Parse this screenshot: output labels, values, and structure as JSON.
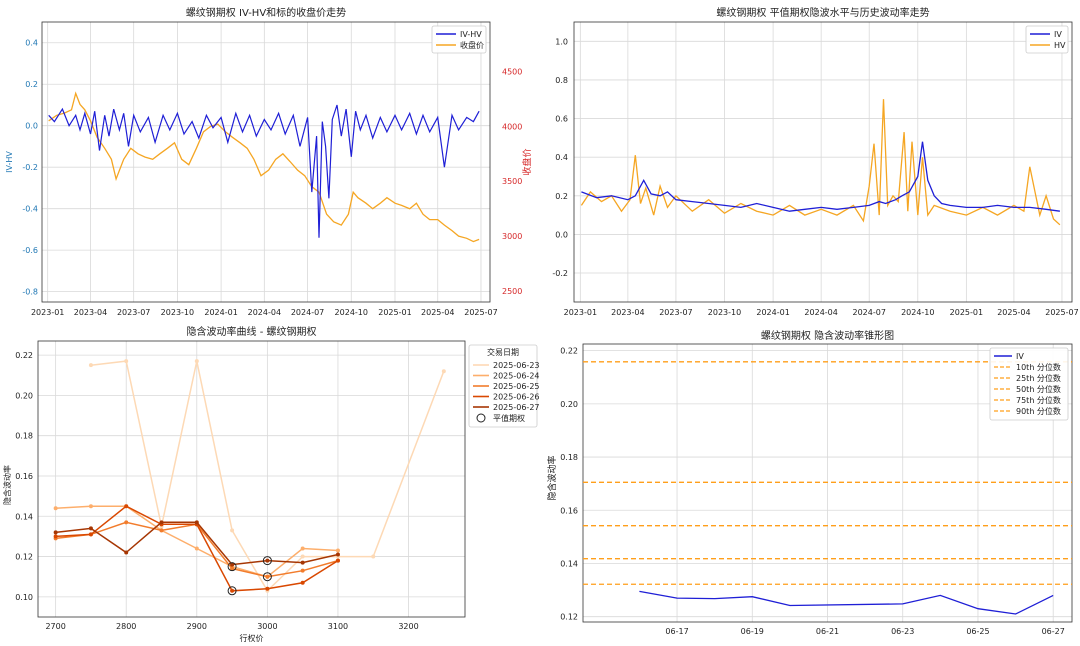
{
  "colors": {
    "iv": "#1f1fd6",
    "hv": "#f5a623",
    "close_axis": "#d62728",
    "iv_hv_axis": "#1f77b4",
    "grid": "#d9d9d9",
    "quantile_line": "#ff9f1a",
    "dates": [
      "#fdd9b5",
      "#fdae6b",
      "#f27c2c",
      "#d94801",
      "#a63603"
    ]
  },
  "chart_data": [
    {
      "type": "line",
      "title": "螺纹钢期权 IV-HV和标的收盘价走势",
      "ylabel": "IV-HV",
      "y2label": "收盘价",
      "ylim": [
        -0.85,
        0.5
      ],
      "y2lim": [
        2400,
        4950
      ],
      "x_range": [
        "2022-12-20",
        "2025-07-20"
      ],
      "yticks": [
        "-0.8",
        "-0.6",
        "-0.4",
        "-0.2",
        "0.0",
        "0.2",
        "0.4"
      ],
      "y2ticks": [
        "2500",
        "3000",
        "3500",
        "4000",
        "4500"
      ],
      "xticks": [
        "2023-01",
        "2023-04",
        "2023-07",
        "2023-10",
        "2024-01",
        "2024-04",
        "2024-07",
        "2024-10",
        "2025-01",
        "2025-04",
        "2025-07"
      ],
      "grid": true,
      "legend_position": "top-right",
      "series": [
        {
          "name": "IV-HV",
          "axis": "left",
          "x": [
            "2023-01-03",
            "2023-01-15",
            "2023-02-01",
            "2023-02-15",
            "2023-03-01",
            "2023-03-10",
            "2023-03-20",
            "2023-04-01",
            "2023-04-10",
            "2023-04-20",
            "2023-05-01",
            "2023-05-10",
            "2023-05-20",
            "2023-06-01",
            "2023-06-10",
            "2023-06-20",
            "2023-07-01",
            "2023-07-15",
            "2023-08-01",
            "2023-08-15",
            "2023-09-01",
            "2023-09-15",
            "2023-10-01",
            "2023-10-15",
            "2023-11-01",
            "2023-11-15",
            "2023-12-01",
            "2023-12-15",
            "2024-01-01",
            "2024-01-15",
            "2024-02-01",
            "2024-02-15",
            "2024-03-01",
            "2024-03-15",
            "2024-04-01",
            "2024-04-15",
            "2024-05-01",
            "2024-05-15",
            "2024-06-01",
            "2024-06-15",
            "2024-07-01",
            "2024-07-10",
            "2024-07-20",
            "2024-07-25",
            "2024-08-01",
            "2024-08-08",
            "2024-08-15",
            "2024-08-22",
            "2024-09-01",
            "2024-09-10",
            "2024-09-20",
            "2024-10-01",
            "2024-10-10",
            "2024-10-20",
            "2024-11-01",
            "2024-11-15",
            "2024-12-01",
            "2024-12-15",
            "2025-01-01",
            "2025-01-15",
            "2025-02-01",
            "2025-02-15",
            "2025-03-01",
            "2025-03-15",
            "2025-04-01",
            "2025-04-15",
            "2025-05-01",
            "2025-05-15",
            "2025-06-01",
            "2025-06-15",
            "2025-06-27"
          ],
          "values": [
            0.05,
            0.02,
            0.08,
            0.0,
            0.05,
            -0.02,
            0.06,
            -0.04,
            0.07,
            -0.12,
            0.05,
            -0.05,
            0.08,
            -0.02,
            0.06,
            -0.1,
            0.05,
            -0.03,
            0.04,
            -0.08,
            0.05,
            -0.02,
            0.06,
            -0.04,
            0.02,
            -0.06,
            0.05,
            -0.01,
            0.04,
            -0.08,
            0.06,
            -0.03,
            0.05,
            -0.05,
            0.03,
            -0.02,
            0.06,
            -0.04,
            0.05,
            -0.1,
            0.04,
            -0.32,
            -0.05,
            -0.54,
            0.02,
            -0.1,
            -0.35,
            0.03,
            0.1,
            -0.05,
            0.08,
            -0.15,
            0.07,
            -0.02,
            0.05,
            -0.06,
            0.04,
            -0.03,
            0.05,
            -0.02,
            0.06,
            -0.04,
            0.05,
            -0.03,
            0.04,
            -0.2,
            0.05,
            -0.02,
            0.04,
            0.02,
            0.07
          ]
        },
        {
          "name": "收盘价",
          "axis": "right",
          "x": [
            "2023-01-03",
            "2023-01-20",
            "2023-02-05",
            "2023-02-20",
            "2023-03-01",
            "2023-03-10",
            "2023-03-20",
            "2023-04-01",
            "2023-04-15",
            "2023-05-01",
            "2023-05-15",
            "2023-05-25",
            "2023-06-10",
            "2023-06-25",
            "2023-07-10",
            "2023-07-25",
            "2023-08-10",
            "2023-08-25",
            "2023-09-10",
            "2023-09-25",
            "2023-10-10",
            "2023-10-25",
            "2023-11-10",
            "2023-11-25",
            "2023-12-10",
            "2023-12-25",
            "2024-01-10",
            "2024-01-25",
            "2024-02-10",
            "2024-02-25",
            "2024-03-10",
            "2024-03-25",
            "2024-04-10",
            "2024-04-25",
            "2024-05-10",
            "2024-05-25",
            "2024-06-10",
            "2024-06-25",
            "2024-07-10",
            "2024-07-25",
            "2024-08-10",
            "2024-08-25",
            "2024-09-10",
            "2024-09-25",
            "2024-10-05",
            "2024-10-15",
            "2024-11-01",
            "2024-11-15",
            "2024-12-01",
            "2024-12-15",
            "2025-01-01",
            "2025-01-15",
            "2025-02-01",
            "2025-02-15",
            "2025-03-01",
            "2025-03-15",
            "2025-04-01",
            "2025-04-15",
            "2025-05-01",
            "2025-05-15",
            "2025-06-01",
            "2025-06-15",
            "2025-06-27"
          ],
          "values": [
            4050,
            4100,
            4120,
            4150,
            4300,
            4200,
            4150,
            4050,
            3900,
            3800,
            3700,
            3520,
            3700,
            3800,
            3750,
            3720,
            3700,
            3750,
            3800,
            3850,
            3700,
            3650,
            3800,
            3950,
            4000,
            4020,
            3950,
            3900,
            3850,
            3800,
            3700,
            3550,
            3600,
            3700,
            3750,
            3680,
            3600,
            3550,
            3450,
            3400,
            3200,
            3130,
            3100,
            3200,
            3400,
            3350,
            3300,
            3250,
            3300,
            3350,
            3300,
            3280,
            3250,
            3300,
            3200,
            3150,
            3150,
            3100,
            3050,
            3000,
            2980,
            2950,
            2970
          ]
        }
      ]
    },
    {
      "type": "line",
      "title": "螺纹钢期权 平值期权隐波水平与历史波动率走势",
      "ylim": [
        -0.35,
        1.1
      ],
      "x_range": [
        "2022-12-20",
        "2025-07-20"
      ],
      "yticks": [
        "-0.2",
        "0.0",
        "0.2",
        "0.4",
        "0.6",
        "0.8",
        "1.0"
      ],
      "xticks": [
        "2023-01",
        "2023-04",
        "2023-07",
        "2023-10",
        "2024-01",
        "2024-04",
        "2024-07",
        "2024-10",
        "2025-01",
        "2025-04",
        "2025-07"
      ],
      "grid": true,
      "legend_position": "top-right",
      "series": [
        {
          "name": "IV",
          "x": [
            "2023-01-03",
            "2023-02-01",
            "2023-03-01",
            "2023-04-01",
            "2023-04-15",
            "2023-05-01",
            "2023-05-15",
            "2023-06-01",
            "2023-06-15",
            "2023-07-01",
            "2023-08-01",
            "2023-09-01",
            "2023-10-01",
            "2023-11-01",
            "2023-12-01",
            "2024-01-01",
            "2024-02-01",
            "2024-03-01",
            "2024-04-01",
            "2024-05-01",
            "2024-06-01",
            "2024-07-01",
            "2024-07-20",
            "2024-08-01",
            "2024-08-20",
            "2024-09-01",
            "2024-09-15",
            "2024-10-01",
            "2024-10-10",
            "2024-10-20",
            "2024-11-01",
            "2024-11-15",
            "2024-12-01",
            "2025-01-01",
            "2025-02-01",
            "2025-03-01",
            "2025-04-01",
            "2025-05-01",
            "2025-06-01",
            "2025-06-27"
          ],
          "values": [
            0.22,
            0.19,
            0.2,
            0.18,
            0.2,
            0.28,
            0.21,
            0.2,
            0.22,
            0.18,
            0.17,
            0.16,
            0.15,
            0.14,
            0.16,
            0.14,
            0.12,
            0.13,
            0.14,
            0.13,
            0.14,
            0.15,
            0.17,
            0.16,
            0.18,
            0.2,
            0.22,
            0.3,
            0.48,
            0.28,
            0.2,
            0.16,
            0.15,
            0.14,
            0.14,
            0.15,
            0.14,
            0.14,
            0.13,
            0.12
          ]
        },
        {
          "name": "HV",
          "x": [
            "2023-01-03",
            "2023-01-20",
            "2023-02-10",
            "2023-03-01",
            "2023-03-20",
            "2023-04-05",
            "2023-04-15",
            "2023-04-25",
            "2023-05-05",
            "2023-05-20",
            "2023-06-01",
            "2023-06-15",
            "2023-07-01",
            "2023-08-01",
            "2023-09-01",
            "2023-10-01",
            "2023-11-01",
            "2023-12-01",
            "2024-01-01",
            "2024-02-01",
            "2024-03-01",
            "2024-04-01",
            "2024-05-01",
            "2024-06-01",
            "2024-06-20",
            "2024-07-01",
            "2024-07-10",
            "2024-07-20",
            "2024-07-28",
            "2024-08-05",
            "2024-08-15",
            "2024-08-25",
            "2024-09-05",
            "2024-09-12",
            "2024-09-20",
            "2024-10-01",
            "2024-10-10",
            "2024-10-20",
            "2024-11-01",
            "2024-12-01",
            "2025-01-01",
            "2025-02-01",
            "2025-03-01",
            "2025-04-01",
            "2025-04-20",
            "2025-05-01",
            "2025-05-20",
            "2025-06-01",
            "2025-06-15",
            "2025-06-27"
          ],
          "values": [
            0.15,
            0.22,
            0.17,
            0.2,
            0.12,
            0.18,
            0.41,
            0.16,
            0.24,
            0.1,
            0.25,
            0.14,
            0.2,
            0.12,
            0.18,
            0.11,
            0.16,
            0.12,
            0.1,
            0.15,
            0.1,
            0.13,
            0.1,
            0.15,
            0.07,
            0.25,
            0.47,
            0.1,
            0.7,
            0.15,
            0.2,
            0.17,
            0.53,
            0.12,
            0.48,
            0.1,
            0.4,
            0.1,
            0.15,
            0.12,
            0.1,
            0.14,
            0.1,
            0.15,
            0.12,
            0.35,
            0.1,
            0.2,
            0.08,
            0.05
          ]
        }
      ]
    },
    {
      "type": "line",
      "title": "隐含波动率曲线 - 螺纹钢期权",
      "xlabel": "行权价",
      "ylabel": "隐含波动率",
      "xlim": [
        2675,
        3280
      ],
      "ylim": [
        0.09,
        0.227
      ],
      "xticks": [
        "2700",
        "2800",
        "2900",
        "3000",
        "3100",
        "3200"
      ],
      "yticks": [
        "0.10",
        "0.12",
        "0.14",
        "0.16",
        "0.18",
        "0.20",
        "0.22"
      ],
      "grid": true,
      "legend_title": "交易日期",
      "legend_position": "top-right",
      "marker_legend": "平值期权",
      "series": [
        {
          "name": "2025-06-23",
          "x": [
            2750,
            2800,
            2850,
            2900,
            2950,
            3000,
            3050,
            3100,
            3150,
            3250
          ],
          "values": [
            0.215,
            0.217,
            0.135,
            0.217,
            0.133,
            0.103,
            0.12,
            0.12,
            0.12,
            0.212
          ]
        },
        {
          "name": "2025-06-24",
          "x": [
            2700,
            2750,
            2800,
            2850,
            2900,
            2950,
            3000,
            3050,
            3100
          ],
          "values": [
            0.144,
            0.145,
            0.145,
            0.133,
            0.124,
            0.115,
            0.11,
            0.124,
            0.123
          ]
        },
        {
          "name": "2025-06-25",
          "x": [
            2700,
            2750,
            2800,
            2850,
            2900,
            2950,
            3000,
            3050,
            3100
          ],
          "values": [
            0.129,
            0.131,
            0.137,
            0.133,
            0.136,
            0.114,
            0.11,
            0.113,
            0.118
          ]
        },
        {
          "name": "2025-06-26",
          "x": [
            2700,
            2750,
            2800,
            2850,
            2900,
            2950,
            3000,
            3050,
            3100
          ],
          "values": [
            0.13,
            0.131,
            0.145,
            0.136,
            0.136,
            0.103,
            0.104,
            0.107,
            0.118
          ]
        },
        {
          "name": "2025-06-27",
          "x": [
            2700,
            2750,
            2800,
            2850,
            2900,
            2950,
            3000,
            3050,
            3100
          ],
          "values": [
            0.132,
            0.134,
            0.122,
            0.137,
            0.137,
            0.116,
            0.118,
            0.117,
            0.121
          ]
        }
      ],
      "atm_points": [
        {
          "x": 2950,
          "y": 0.115
        },
        {
          "x": 2950,
          "y": 0.103
        },
        {
          "x": 3000,
          "y": 0.118
        },
        {
          "x": 3000,
          "y": 0.11
        }
      ]
    },
    {
      "type": "line",
      "title": "螺纹钢期权 隐含波动率锥形图",
      "ylabel": "隐含波动率",
      "ylim": [
        0.118,
        0.2225
      ],
      "x_range": [
        "2025-06-14T12:00",
        "2025-06-27T12:00"
      ],
      "yticks": [
        "0.12",
        "0.14",
        "0.16",
        "0.18",
        "0.20",
        "0.22"
      ],
      "xticks": [
        "06-17",
        "06-19",
        "06-21",
        "06-23",
        "06-25",
        "06-27"
      ],
      "grid": true,
      "legend_position": "top-right",
      "series": [
        {
          "name": "IV",
          "x": [
            "2025-06-16",
            "2025-06-17",
            "2025-06-18",
            "2025-06-19",
            "2025-06-20",
            "2025-06-23",
            "2025-06-24",
            "2025-06-25",
            "2025-06-26",
            "2025-06-27"
          ],
          "values": [
            0.1295,
            0.127,
            0.1268,
            0.1275,
            0.1242,
            0.1248,
            0.128,
            0.123,
            0.121,
            0.128
          ]
        }
      ],
      "quantiles": [
        {
          "name": "10th 分位数",
          "value": 0.1322
        },
        {
          "name": "25th 分位数",
          "value": 0.1418
        },
        {
          "name": "50th 分位数",
          "value": 0.1542
        },
        {
          "name": "75th 分位数",
          "value": 0.1705
        },
        {
          "name": "90th 分位数",
          "value": 0.2158
        }
      ]
    }
  ]
}
